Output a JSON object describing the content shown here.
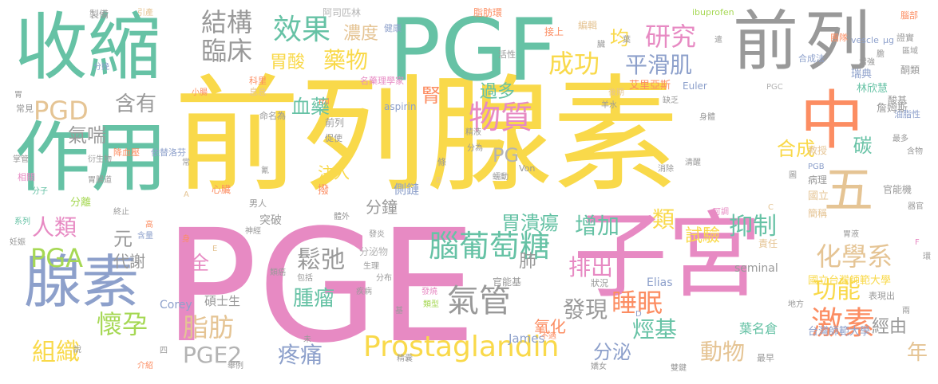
{
  "palette": {
    "yellow": "#f9d94a",
    "pink": "#e78ac3",
    "green": "#66c2a5",
    "gray": "#b3b3b3",
    "darkgray": "#999999",
    "orange": "#fc8d62",
    "blue": "#8da0cb",
    "lime": "#a6d854",
    "tan": "#e5c494"
  },
  "words": [
    {
      "text": "前列腺素"
    },
    {
      "text": "PGE"
    },
    {
      "text": "PGF"
    },
    {
      "text": "收縮"
    },
    {
      "text": "前"
    },
    {
      "text": "列"
    },
    {
      "text": "作用"
    },
    {
      "text": "子宮"
    },
    {
      "text": "中"
    },
    {
      "text": "腺素"
    },
    {
      "text": "五"
    },
    {
      "text": "Prostaglandin"
    },
    {
      "text": "腦葡萄糖"
    },
    {
      "text": "氣管"
    },
    {
      "text": "PGD"
    },
    {
      "text": "PGA"
    },
    {
      "text": "效果"
    },
    {
      "text": "結構"
    },
    {
      "text": "臨床"
    },
    {
      "text": "胃酸"
    },
    {
      "text": "藥物"
    },
    {
      "text": "研究"
    },
    {
      "text": "物質"
    },
    {
      "text": "成功"
    },
    {
      "text": "平滑肌"
    },
    {
      "text": "激素"
    },
    {
      "text": "懷孕"
    },
    {
      "text": "脂肪"
    },
    {
      "text": "組織"
    },
    {
      "text": "疼痛"
    },
    {
      "text": "PGE2"
    },
    {
      "text": "人類"
    },
    {
      "text": "鬆弛"
    },
    {
      "text": "腫瘤"
    },
    {
      "text": "化學系"
    },
    {
      "text": "功能"
    },
    {
      "text": "睡眠"
    },
    {
      "text": "抑制"
    },
    {
      "text": "試驗"
    },
    {
      "text": "增加"
    },
    {
      "text": "排出"
    },
    {
      "text": "發現"
    },
    {
      "text": "烴基"
    },
    {
      "text": "動物"
    },
    {
      "text": "分泌"
    },
    {
      "text": "胃潰瘍"
    },
    {
      "text": "含有"
    },
    {
      "text": "血藥"
    },
    {
      "text": "濃度"
    },
    {
      "text": "過多"
    },
    {
      "text": "氣喘"
    },
    {
      "text": "PG"
    },
    {
      "text": "腎"
    },
    {
      "text": "均"
    },
    {
      "text": "合成"
    },
    {
      "text": "碳"
    },
    {
      "text": "全"
    },
    {
      "text": "年"
    },
    {
      "text": "經由"
    },
    {
      "text": "注入"
    },
    {
      "text": "分鐘"
    },
    {
      "text": "類"
    },
    {
      "text": "肺"
    },
    {
      "text": "氧化"
    },
    {
      "text": "代謝"
    },
    {
      "text": "元"
    },
    {
      "text": "國立台灣師範大學"
    },
    {
      "text": "台灣師範大學"
    },
    {
      "text": "葉名倉"
    },
    {
      "text": "Corey"
    },
    {
      "text": "碩士生"
    },
    {
      "text": "James"
    },
    {
      "text": "Elias"
    },
    {
      "text": "seminal"
    },
    {
      "text": "艾里亞斯"
    },
    {
      "text": "林欣慧"
    },
    {
      "text": "瑞典"
    },
    {
      "text": "Euler"
    },
    {
      "text": "aspirin"
    },
    {
      "text": "ibuprofen"
    },
    {
      "text": "阿司匹林"
    },
    {
      "text": "脂肪環"
    },
    {
      "text": "接上"
    },
    {
      "text": "編輯"
    },
    {
      "text": "製備"
    },
    {
      "text": "引產"
    },
    {
      "text": "健康"
    },
    {
      "text": "團隊"
    },
    {
      "text": "證實"
    },
    {
      "text": "腦部"
    },
    {
      "text": "酮類"
    },
    {
      "text": "合成法"
    },
    {
      "text": "詹姆斯"
    },
    {
      "text": "酸基"
    },
    {
      "text": "油脂性"
    },
    {
      "text": "教授"
    },
    {
      "text": "病理"
    },
    {
      "text": "官能機"
    },
    {
      "text": "國立"
    },
    {
      "text": "簡稱"
    },
    {
      "text": "責任"
    },
    {
      "text": "官能基"
    },
    {
      "text": "分泌物"
    },
    {
      "text": "突破"
    },
    {
      "text": "男人"
    },
    {
      "text": "心臟"
    },
    {
      "text": "降血壓"
    },
    {
      "text": "依替洛芬"
    },
    {
      "text": "名藥理學家"
    },
    {
      "text": "科里"
    },
    {
      "text": "息息"
    },
    {
      "text": "命名為"
    },
    {
      "text": "前列"
    },
    {
      "text": "促使"
    },
    {
      "text": "活性"
    },
    {
      "text": "分娩"
    },
    {
      "text": "小腸"
    },
    {
      "text": "常見"
    },
    {
      "text": "掌管"
    },
    {
      "text": "衍生物"
    },
    {
      "text": "胃腸道"
    },
    {
      "text": "相關"
    },
    {
      "text": "分子"
    },
    {
      "text": "系列"
    },
    {
      "text": "妊娠"
    },
    {
      "text": "終止"
    },
    {
      "text": "含量"
    },
    {
      "text": "說"
    },
    {
      "text": "介紹"
    },
    {
      "text": "舉例"
    },
    {
      "text": "雙鍵"
    },
    {
      "text": "最早"
    },
    {
      "text": "地方"
    },
    {
      "text": "表現出"
    },
    {
      "text": "兩"
    },
    {
      "text": "狀況"
    },
    {
      "text": "精囊"
    },
    {
      "text": "不適"
    },
    {
      "text": "嬌女"
    },
    {
      "text": "發燒"
    },
    {
      "text": "類型"
    },
    {
      "text": "疾病"
    },
    {
      "text": "包括"
    },
    {
      "text": "類癌"
    },
    {
      "text": "神經"
    },
    {
      "text": "發炎"
    },
    {
      "text": "體外"
    },
    {
      "text": "生理"
    },
    {
      "text": "分布"
    },
    {
      "text": "精液"
    },
    {
      "text": "分為"
    },
    {
      "text": "蠕動"
    },
    {
      "text": "清醒"
    },
    {
      "text": "消除"
    },
    {
      "text": "可調"
    },
    {
      "text": "胃液"
    },
    {
      "text": "增強"
    },
    {
      "text": "後期"
    },
    {
      "text": "羊水"
    },
    {
      "text": "缺乏"
    },
    {
      "text": "身體"
    },
    {
      "text": "區域"
    },
    {
      "text": "最多"
    },
    {
      "text": "含物"
    },
    {
      "text": "器官"
    },
    {
      "text": "胃"
    },
    {
      "text": "身"
    },
    {
      "text": "μg"
    },
    {
      "text": "ml"
    },
    {
      "text": "vescle"
    },
    {
      "text": "PGB"
    },
    {
      "text": "PGC"
    },
    {
      "text": "Von"
    },
    {
      "text": "條"
    },
    {
      "text": "撥"
    },
    {
      "text": "側鏈"
    },
    {
      "text": "分離"
    },
    {
      "text": "高"
    },
    {
      "text": "四"
    },
    {
      "text": "未"
    },
    {
      "text": "基"
    },
    {
      "text": "常"
    },
    {
      "text": "遣"
    },
    {
      "text": "膽"
    },
    {
      "text": "葉"
    },
    {
      "text": "臟"
    },
    {
      "text": "環"
    },
    {
      "text": "圖"
    },
    {
      "text": "氰"
    },
    {
      "text": "A"
    },
    {
      "text": "B"
    },
    {
      "text": "C"
    },
    {
      "text": "D"
    },
    {
      "text": "E"
    },
    {
      "text": "F"
    }
  ]
}
